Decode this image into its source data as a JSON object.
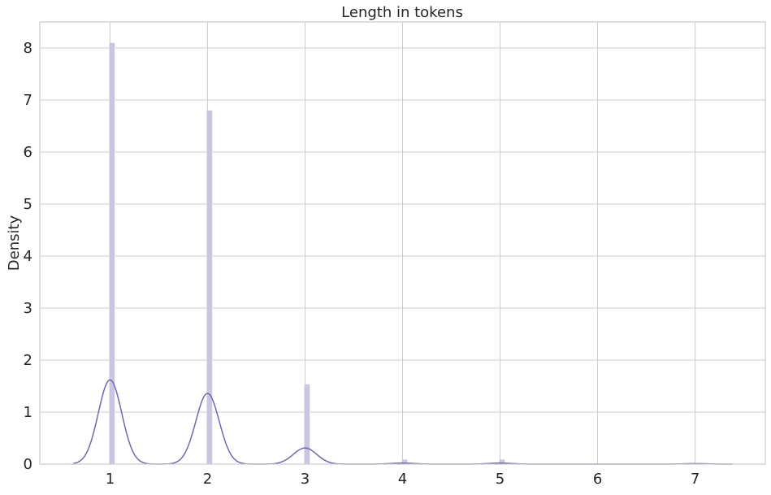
{
  "chart_data": {
    "type": "bar",
    "title": "Length in tokens",
    "xlabel": "",
    "ylabel": "Density",
    "xlim": [
      0.28,
      7.72
    ],
    "ylim": [
      0,
      8.5
    ],
    "xticks": [
      "1",
      "2",
      "3",
      "4",
      "5",
      "6",
      "7"
    ],
    "yticks": [
      "0",
      "1",
      "2",
      "3",
      "4",
      "5",
      "6",
      "7",
      "8"
    ],
    "grid": true,
    "series": [
      {
        "kind": "histogram",
        "bins": [
          {
            "x": 1,
            "density": 8.1
          },
          {
            "x": 2,
            "density": 6.8
          },
          {
            "x": 3,
            "density": 1.54
          },
          {
            "x": 4,
            "density": 0.09
          },
          {
            "x": 5,
            "density": 0.09
          }
        ],
        "color": "#c9c7e0"
      },
      {
        "kind": "kde",
        "peaks": [
          {
            "x": 1,
            "density": 1.62
          },
          {
            "x": 2,
            "density": 1.36
          },
          {
            "x": 3,
            "density": 0.31
          },
          {
            "x": 4,
            "density": 0.02
          },
          {
            "x": 5,
            "density": 0.02
          },
          {
            "x": 7,
            "density": 0.01
          }
        ],
        "xrange": [
          0.62,
          7.38
        ],
        "color": "#7467ae"
      }
    ]
  }
}
